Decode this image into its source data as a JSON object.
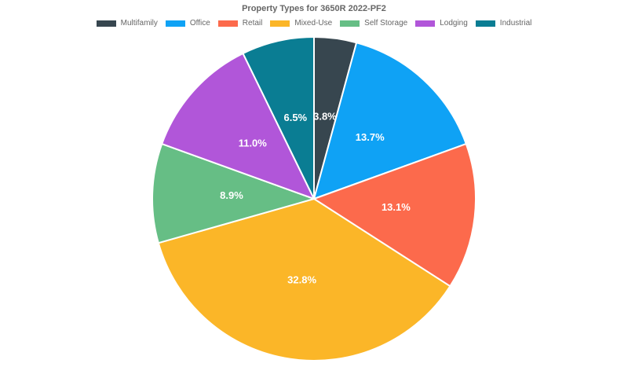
{
  "title": "Property Types for 3650R 2022-PF2",
  "styles": {
    "background_color": "#FFFFFF",
    "text_color": "#666666",
    "slice_border_color": "#FFFFFF",
    "slice_label_color": "#FFFFFF"
  },
  "chart_data": {
    "type": "pie",
    "title": "Property Types for 3650R 2022-PF2",
    "categories": [
      "Multifamily",
      "Office",
      "Retail",
      "Mixed-Use",
      "Self Storage",
      "Lodging",
      "Industrial"
    ],
    "values": [
      3.8,
      13.7,
      13.1,
      32.8,
      8.9,
      11.0,
      6.5
    ],
    "slice_labels": [
      "3.8%",
      "13.7%",
      "13.1%",
      "32.8%",
      "8.9%",
      "11.0%",
      "6.5%"
    ],
    "colors": [
      "#37464F",
      "#0FA2F5",
      "#FC6A4C",
      "#FBB628",
      "#66BE85",
      "#B156D9",
      "#0A7D93"
    ],
    "legend_position": "top",
    "start_angle_deg": 0,
    "direction": "clockwise"
  }
}
